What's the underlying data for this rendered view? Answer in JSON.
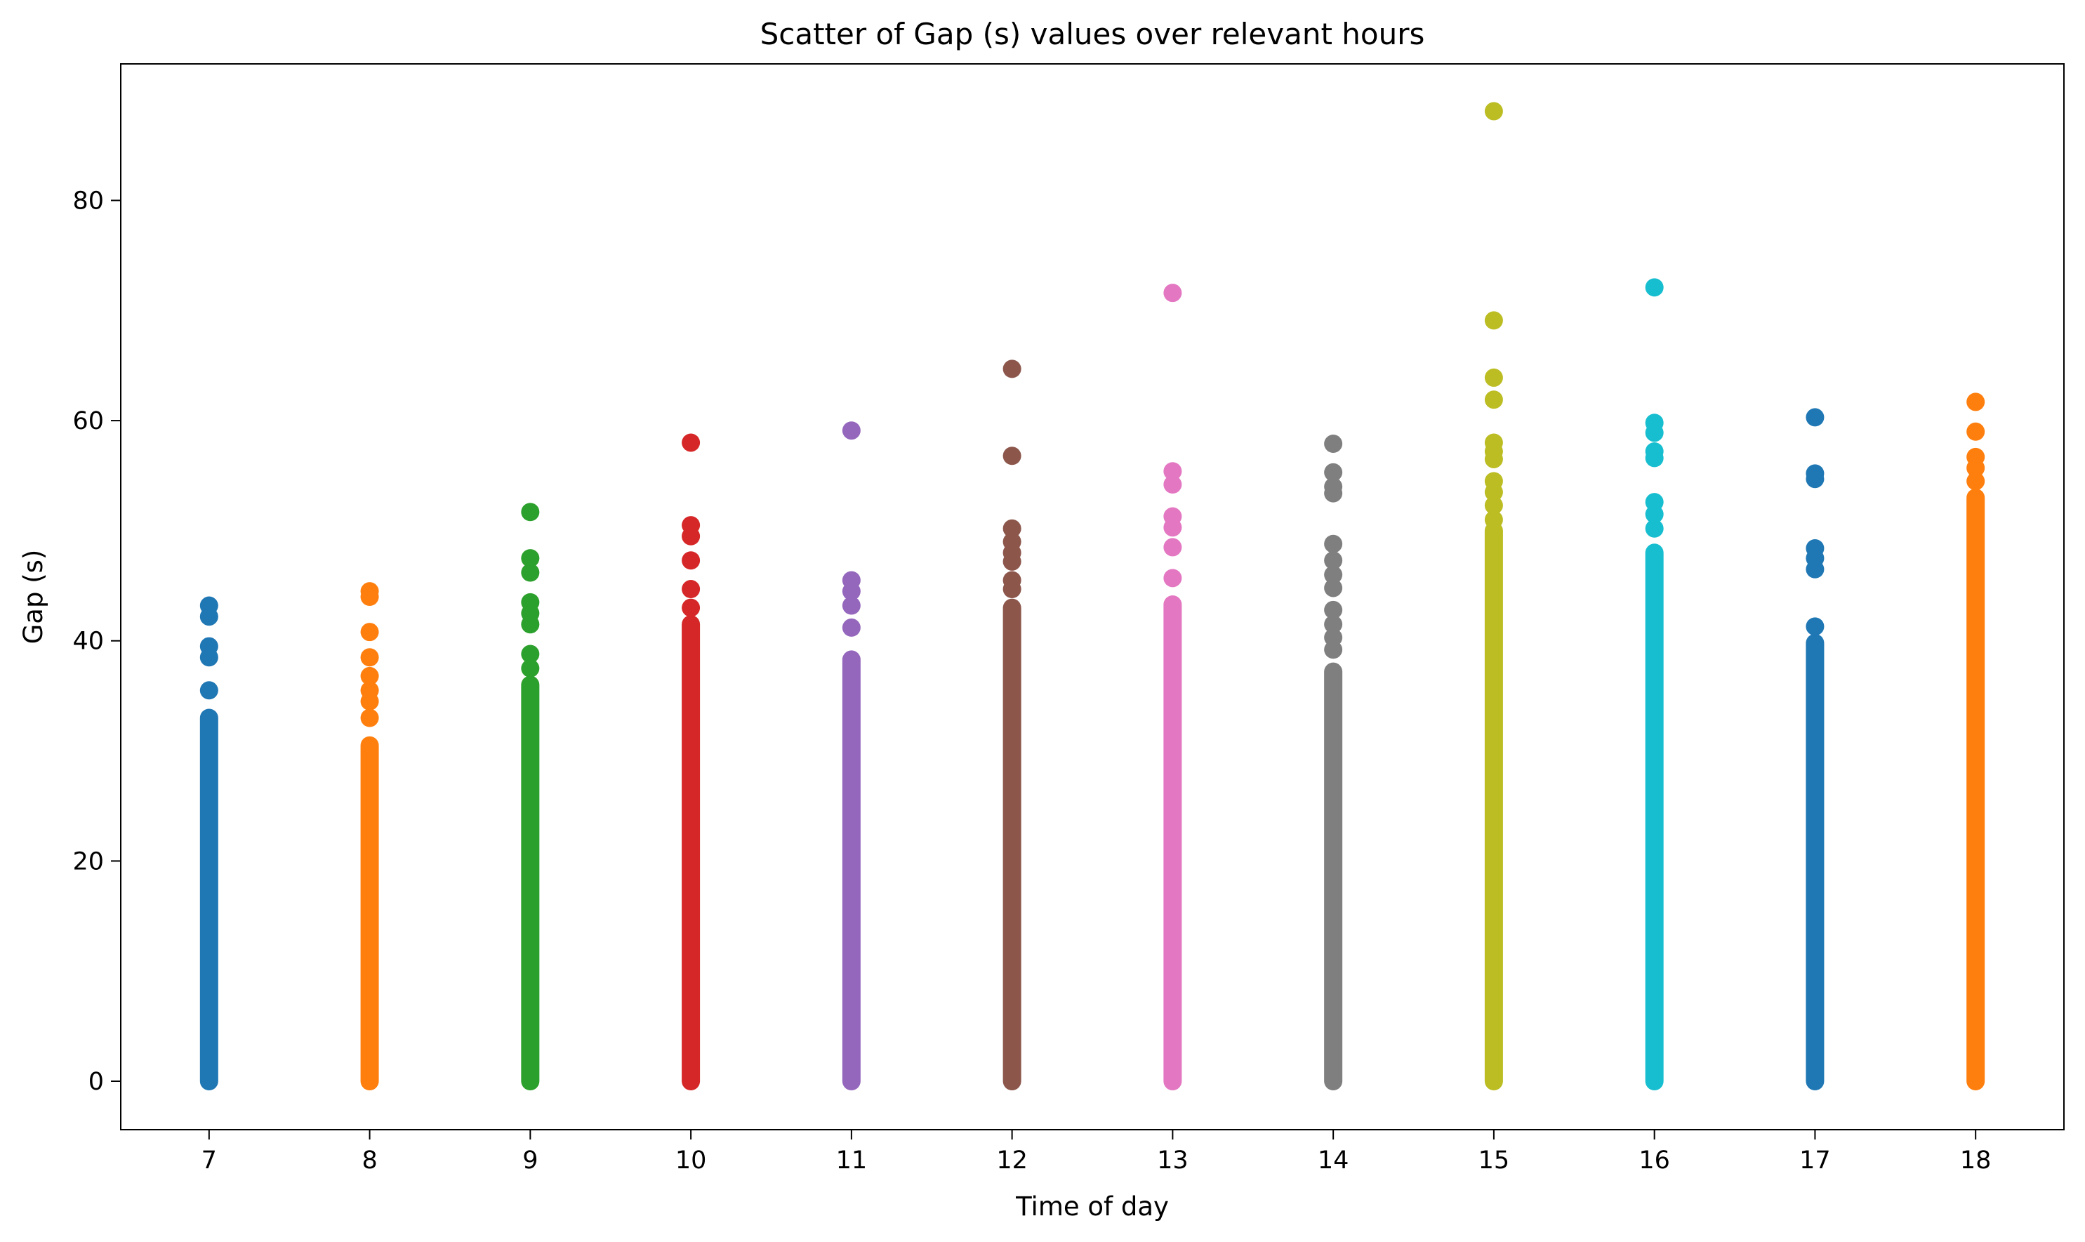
{
  "chart_data": {
    "type": "scatter",
    "title": "Scatter of Gap (s) values over relevant hours",
    "xlabel": "Time of day",
    "ylabel": "Gap (s)",
    "xlim": [
      6.45,
      18.55
    ],
    "ylim": [
      -4.4,
      92.4
    ],
    "x_ticks": [
      7,
      8,
      9,
      10,
      11,
      12,
      13,
      14,
      15,
      16,
      17,
      18
    ],
    "y_ticks": [
      0,
      20,
      40,
      60,
      80
    ],
    "grid": false,
    "legend": "none",
    "series": [
      {
        "x": 7,
        "color": "#1f77b4",
        "dense_range": [
          0,
          33
        ],
        "outliers": [
          35.5,
          38.5,
          39.5,
          42.2,
          43.2
        ]
      },
      {
        "x": 8,
        "color": "#ff7f0e",
        "dense_range": [
          0,
          30.5
        ],
        "outliers": [
          33,
          34.5,
          35.5,
          36.8,
          38.5,
          40.8,
          44,
          44.5
        ]
      },
      {
        "x": 9,
        "color": "#2ca02c",
        "dense_range": [
          0,
          36
        ],
        "outliers": [
          37.5,
          38.8,
          41.5,
          42.5,
          43.5,
          46.2,
          47.5,
          51.7
        ]
      },
      {
        "x": 10,
        "color": "#d62728",
        "dense_range": [
          0,
          41.5
        ],
        "outliers": [
          43,
          44.7,
          47.3,
          49.5,
          50.5,
          58
        ]
      },
      {
        "x": 11,
        "color": "#9467bd",
        "dense_range": [
          0,
          38.3
        ],
        "outliers": [
          41.2,
          43.2,
          44.5,
          45.5,
          59.1
        ]
      },
      {
        "x": 12,
        "color": "#8c564b",
        "dense_range": [
          0,
          43
        ],
        "outliers": [
          44.7,
          45.5,
          47.2,
          48,
          49,
          50.2,
          56.8,
          64.7
        ]
      },
      {
        "x": 13,
        "color": "#e377c2",
        "dense_range": [
          0,
          43.3
        ],
        "outliers": [
          45.7,
          48.5,
          50.3,
          51.3,
          54.2,
          55.4,
          71.6
        ]
      },
      {
        "x": 14,
        "color": "#7f7f7f",
        "dense_range": [
          0,
          37.2
        ],
        "outliers": [
          39.2,
          40.3,
          41.5,
          42.8,
          44.8,
          46,
          47.3,
          48.8,
          53.4,
          54,
          55.3,
          57.9
        ]
      },
      {
        "x": 15,
        "color": "#bcbd22",
        "dense_range": [
          0,
          50
        ],
        "outliers": [
          51,
          52.3,
          53.5,
          54.5,
          56.5,
          57.2,
          58,
          61.9,
          63.9,
          69.1,
          88.1
        ]
      },
      {
        "x": 16,
        "color": "#17becf",
        "dense_range": [
          0,
          48
        ],
        "outliers": [
          50.2,
          51.5,
          52.6,
          56.6,
          57.2,
          58.9,
          59.8,
          72.1
        ]
      },
      {
        "x": 17,
        "color": "#1f77b4",
        "dense_range": [
          0,
          39.8
        ],
        "outliers": [
          41.3,
          46.5,
          47.5,
          48.4,
          54.7,
          55.2,
          60.3
        ]
      },
      {
        "x": 18,
        "color": "#ff7f0e",
        "dense_range": [
          0,
          53
        ],
        "outliers": [
          54.5,
          55.7,
          56.7,
          59,
          61.7
        ]
      }
    ]
  }
}
